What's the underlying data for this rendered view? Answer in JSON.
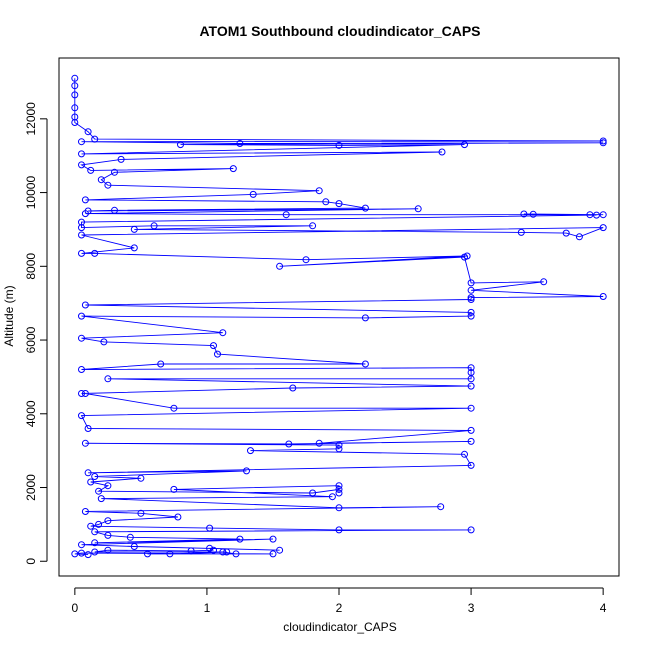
{
  "chart_data": {
    "type": "scatter",
    "title": "ATOM1 Southbound cloudindicator_CAPS",
    "xlabel": "cloudindicator_CAPS",
    "ylabel": "Altitude (m)",
    "xlim": [
      -0.12,
      4.12
    ],
    "ylim": [
      -400,
      13650
    ],
    "xticks": [
      0,
      1,
      2,
      3,
      4
    ],
    "yticks": [
      0,
      2000,
      4000,
      6000,
      8000,
      10000,
      12000
    ],
    "grid": false,
    "legend": "none",
    "color": "#0000ff",
    "series": [
      {
        "points": [
          [
            0,
            13100
          ],
          [
            0,
            12900
          ],
          [
            0,
            12650
          ],
          [
            0,
            12300
          ],
          [
            0,
            12050
          ],
          [
            0,
            11900
          ],
          [
            0.1,
            11650
          ],
          [
            0.15,
            11450
          ],
          [
            4,
            11400
          ],
          [
            0.05,
            11380
          ],
          [
            1.25,
            11330
          ],
          [
            4,
            11350
          ],
          [
            0.8,
            11300
          ],
          [
            2,
            11280
          ],
          [
            2.95,
            11300
          ],
          [
            0.05,
            11050
          ],
          [
            2.78,
            11100
          ],
          [
            0.35,
            10900
          ],
          [
            0.05,
            10750
          ],
          [
            0.12,
            10600
          ],
          [
            1.2,
            10650
          ],
          [
            0.3,
            10550
          ],
          [
            0.2,
            10350
          ],
          [
            0.25,
            10200
          ],
          [
            1.85,
            10050
          ],
          [
            1.35,
            9950
          ],
          [
            0.08,
            9800
          ],
          [
            1.9,
            9750
          ],
          [
            2,
            9700
          ],
          [
            2.2,
            9580
          ],
          [
            0.3,
            9520
          ],
          [
            0.1,
            9500
          ],
          [
            2.6,
            9560
          ],
          [
            0.08,
            9430
          ],
          [
            1.6,
            9400
          ],
          [
            4,
            9400
          ],
          [
            3.4,
            9420
          ],
          [
            3.47,
            9410
          ],
          [
            3.9,
            9400
          ],
          [
            3.95,
            9390
          ],
          [
            0.05,
            9200
          ],
          [
            0.05,
            9050
          ],
          [
            0.6,
            9100
          ],
          [
            1.8,
            9100
          ],
          [
            0.45,
            9000
          ],
          [
            3.38,
            8920
          ],
          [
            3.72,
            8900
          ],
          [
            3.82,
            8800
          ],
          [
            4,
            9050
          ],
          [
            0.05,
            8850
          ],
          [
            0.45,
            8500
          ],
          [
            0.05,
            8350
          ],
          [
            0.15,
            8350
          ],
          [
            1.75,
            8180
          ],
          [
            2.97,
            8280
          ],
          [
            1.55,
            8000
          ],
          [
            2.95,
            8250
          ],
          [
            3,
            7550
          ],
          [
            3.55,
            7580
          ],
          [
            3,
            7350
          ],
          [
            4,
            7180
          ],
          [
            3,
            7150
          ],
          [
            3,
            7100
          ],
          [
            0.08,
            6950
          ],
          [
            3,
            6750
          ],
          [
            3,
            6650
          ],
          [
            2.2,
            6600
          ],
          [
            0.05,
            6650
          ],
          [
            1.12,
            6200
          ],
          [
            0.05,
            6050
          ],
          [
            0.22,
            5950
          ],
          [
            1.05,
            5850
          ],
          [
            1.08,
            5620
          ],
          [
            2.2,
            5350
          ],
          [
            0.65,
            5350
          ],
          [
            0.05,
            5200
          ],
          [
            3,
            5250
          ],
          [
            3,
            5120
          ],
          [
            3,
            4950
          ],
          [
            0.25,
            4950
          ],
          [
            3,
            4750
          ],
          [
            1.65,
            4700
          ],
          [
            0.05,
            4550
          ],
          [
            0.08,
            4550
          ],
          [
            0.75,
            4150
          ],
          [
            3,
            4150
          ],
          [
            0.05,
            3950
          ],
          [
            0.1,
            3600
          ],
          [
            3,
            3550
          ],
          [
            1.85,
            3200
          ],
          [
            3,
            3250
          ],
          [
            1.62,
            3180
          ],
          [
            0.08,
            3200
          ],
          [
            2,
            3150
          ],
          [
            2,
            3050
          ],
          [
            1.33,
            3000
          ],
          [
            2.95,
            2900
          ],
          [
            3,
            2600
          ],
          [
            0.1,
            2400
          ],
          [
            1.3,
            2450
          ],
          [
            0.15,
            2300
          ],
          [
            0.5,
            2250
          ],
          [
            0.12,
            2150
          ],
          [
            0.25,
            2050
          ],
          [
            0.18,
            1900
          ],
          [
            1.8,
            1850
          ],
          [
            2,
            1950
          ],
          [
            2,
            1850
          ],
          [
            2,
            2050
          ],
          [
            0.75,
            1950
          ],
          [
            1.95,
            1750
          ],
          [
            0.2,
            1700
          ],
          [
            2,
            1450
          ],
          [
            2.77,
            1480
          ],
          [
            0.08,
            1350
          ],
          [
            0.5,
            1300
          ],
          [
            0.78,
            1200
          ],
          [
            0.25,
            1100
          ],
          [
            0.18,
            1000
          ],
          [
            0.12,
            950
          ],
          [
            1.02,
            900
          ],
          [
            2,
            850
          ],
          [
            3,
            850
          ],
          [
            0.15,
            800
          ],
          [
            0.25,
            700
          ],
          [
            0.42,
            650
          ],
          [
            1.25,
            600
          ],
          [
            0.15,
            500
          ],
          [
            1.5,
            600
          ],
          [
            0.05,
            450
          ],
          [
            0.45,
            400
          ],
          [
            1.55,
            300
          ],
          [
            1.02,
            350
          ],
          [
            1.05,
            300
          ],
          [
            0.88,
            280
          ],
          [
            0.25,
            300
          ],
          [
            0.15,
            250
          ],
          [
            1.15,
            250
          ],
          [
            0.72,
            200
          ],
          [
            1.12,
            250
          ],
          [
            1.22,
            200
          ],
          [
            0.55,
            200
          ],
          [
            1.5,
            200
          ],
          [
            0.05,
            220
          ],
          [
            0,
            200
          ],
          [
            0.1,
            180
          ]
        ]
      }
    ]
  }
}
